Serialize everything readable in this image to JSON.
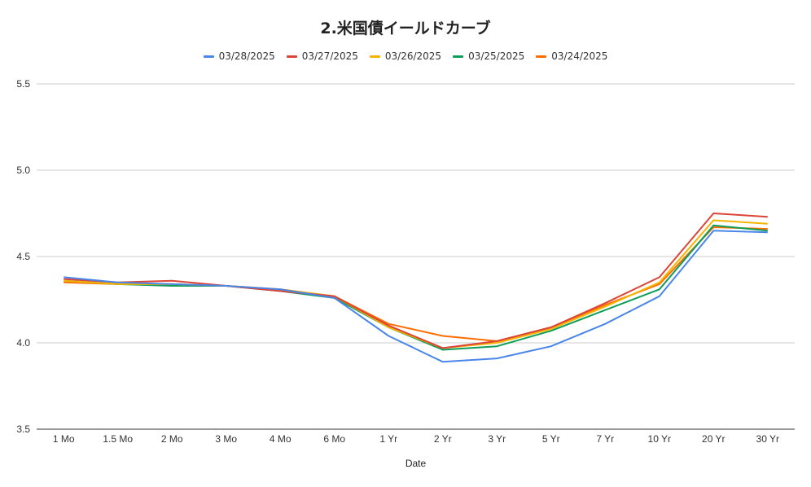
{
  "chart_data": {
    "type": "line",
    "title": "2.米国債イールドカーブ",
    "xlabel": "Date",
    "ylabel": "",
    "categories": [
      "1 Mo",
      "1.5 Mo",
      "2 Mo",
      "3 Mo",
      "4 Mo",
      "6 Mo",
      "1 Yr",
      "2 Yr",
      "3 Yr",
      "5 Yr",
      "7 Yr",
      "10 Yr",
      "20 Yr",
      "30 Yr"
    ],
    "ylim": [
      3.5,
      5.5
    ],
    "yticks": [
      "3.5",
      "4.0",
      "4.5",
      "5.0",
      "5.5"
    ],
    "grid": "horizontal",
    "legend_position": "top",
    "series": [
      {
        "name": "03/28/2025",
        "color": "#4a86e8",
        "values": [
          4.38,
          4.35,
          4.34,
          4.33,
          4.31,
          4.26,
          4.04,
          3.89,
          3.91,
          3.98,
          4.11,
          4.27,
          4.65,
          4.64
        ]
      },
      {
        "name": "03/27/2025",
        "color": "#db4437",
        "values": [
          4.37,
          4.35,
          4.36,
          4.33,
          4.3,
          4.27,
          4.1,
          3.97,
          4.01,
          4.09,
          4.23,
          4.38,
          4.75,
          4.73
        ]
      },
      {
        "name": "03/26/2025",
        "color": "#f4b400",
        "values": [
          4.36,
          4.34,
          4.34,
          4.33,
          4.31,
          4.27,
          4.09,
          3.97,
          4.0,
          4.08,
          4.21,
          4.35,
          4.71,
          4.69
        ]
      },
      {
        "name": "03/25/2025",
        "color": "#0f9d58",
        "values": [
          4.36,
          4.34,
          4.33,
          4.33,
          4.3,
          4.26,
          4.09,
          3.96,
          3.98,
          4.07,
          4.19,
          4.31,
          4.68,
          4.65
        ]
      },
      {
        "name": "03/24/2025",
        "color": "#ff6d00",
        "values": [
          4.35,
          4.34,
          4.34,
          4.33,
          4.31,
          4.27,
          4.11,
          4.04,
          4.01,
          4.09,
          4.22,
          4.34,
          4.67,
          4.66
        ]
      }
    ]
  }
}
